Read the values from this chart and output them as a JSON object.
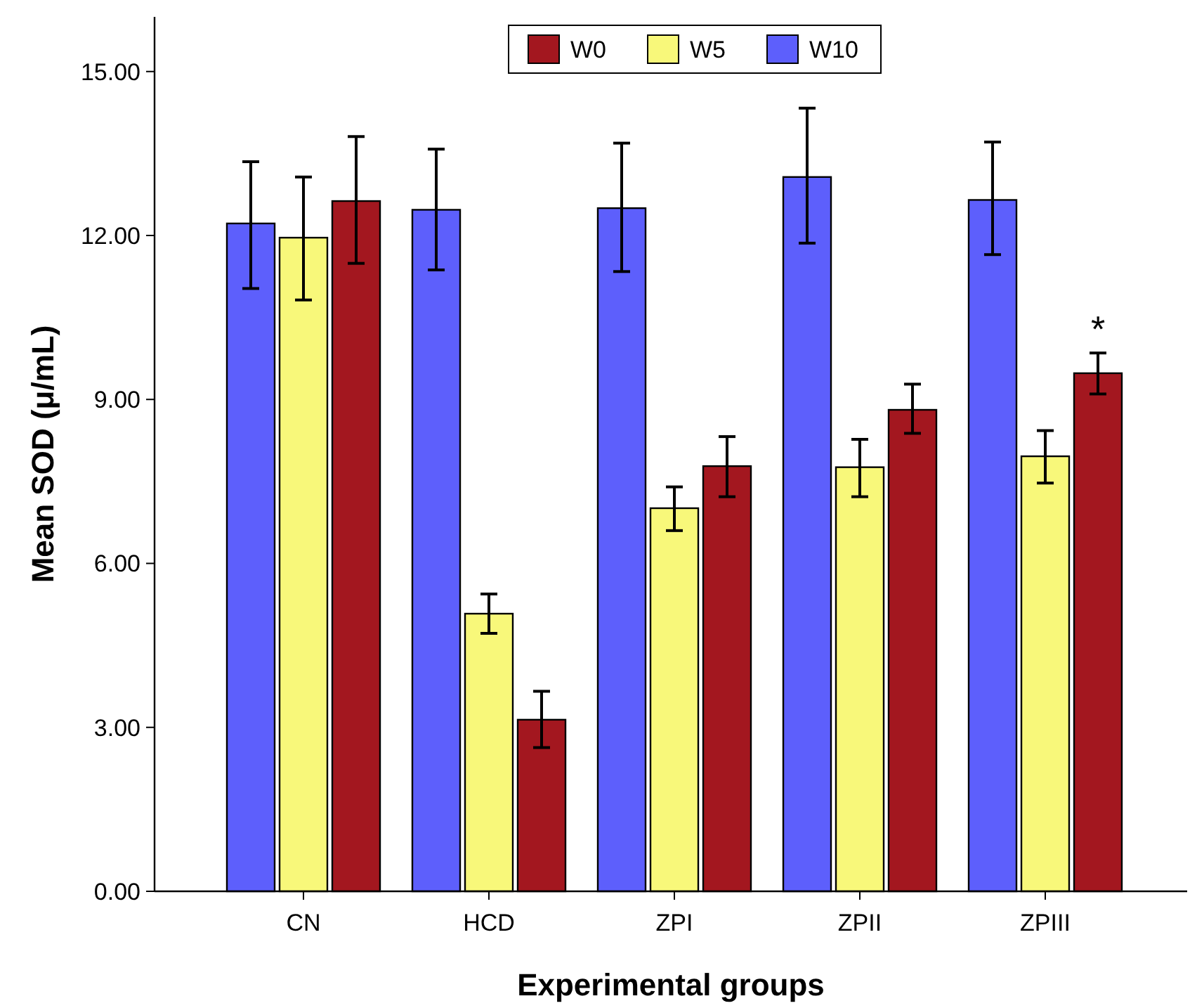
{
  "chart_data": {
    "type": "bar",
    "xlabel": "Experimental groups",
    "ylabel": "Mean SOD (μ/mL)",
    "categories": [
      "CN",
      "HCD",
      "ZPI",
      "ZPII",
      "ZPIII"
    ],
    "series": [
      {
        "name": "W0",
        "color": "#a3171f",
        "values": [
          12.63,
          3.14,
          7.78,
          8.81,
          9.48
        ],
        "errors": [
          [
            11.49,
            13.81
          ],
          [
            2.63,
            3.66
          ],
          [
            7.22,
            8.32
          ],
          [
            8.38,
            9.28
          ],
          [
            9.1,
            9.85
          ]
        ]
      },
      {
        "name": "W5",
        "color": "#f8f87a",
        "values": [
          11.96,
          5.08,
          7.01,
          7.76,
          7.96
        ],
        "errors": [
          [
            10.82,
            13.07
          ],
          [
            4.72,
            5.44
          ],
          [
            6.6,
            7.4
          ],
          [
            7.22,
            8.27
          ],
          [
            7.47,
            8.43
          ]
        ]
      },
      {
        "name": "W10",
        "color": "#5d5ffc",
        "values": [
          12.22,
          12.47,
          12.5,
          13.07,
          12.65
        ],
        "errors": [
          [
            11.03,
            13.35
          ],
          [
            11.37,
            13.58
          ],
          [
            11.34,
            13.69
          ],
          [
            11.86,
            14.33
          ],
          [
            11.65,
            13.71
          ]
        ]
      }
    ],
    "ylim": [
      0,
      16.0
    ],
    "yticks": [
      {
        "value": 0,
        "label": "0.00"
      },
      {
        "value": 3,
        "label": "3.00"
      },
      {
        "value": 6,
        "label": "6.00"
      },
      {
        "value": 9,
        "label": "9.00"
      },
      {
        "value": 12,
        "label": "12.00"
      },
      {
        "value": 15,
        "label": "15.00"
      }
    ],
    "annotations": [
      "*"
    ],
    "grid": false,
    "legend": "top"
  }
}
